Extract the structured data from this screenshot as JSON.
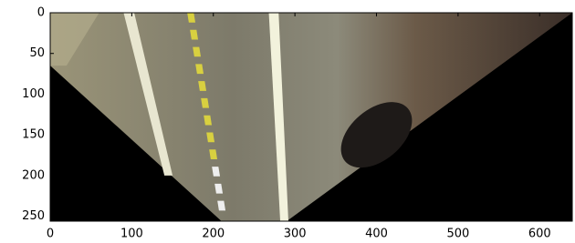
{
  "chart_data": {
    "type": "image",
    "xlim": [
      0,
      640
    ],
    "ylim": [
      256,
      0
    ],
    "xticks": [
      0,
      100,
      200,
      300,
      400,
      500,
      600
    ],
    "yticks": [
      0,
      50,
      100,
      150,
      200,
      250
    ]
  }
}
